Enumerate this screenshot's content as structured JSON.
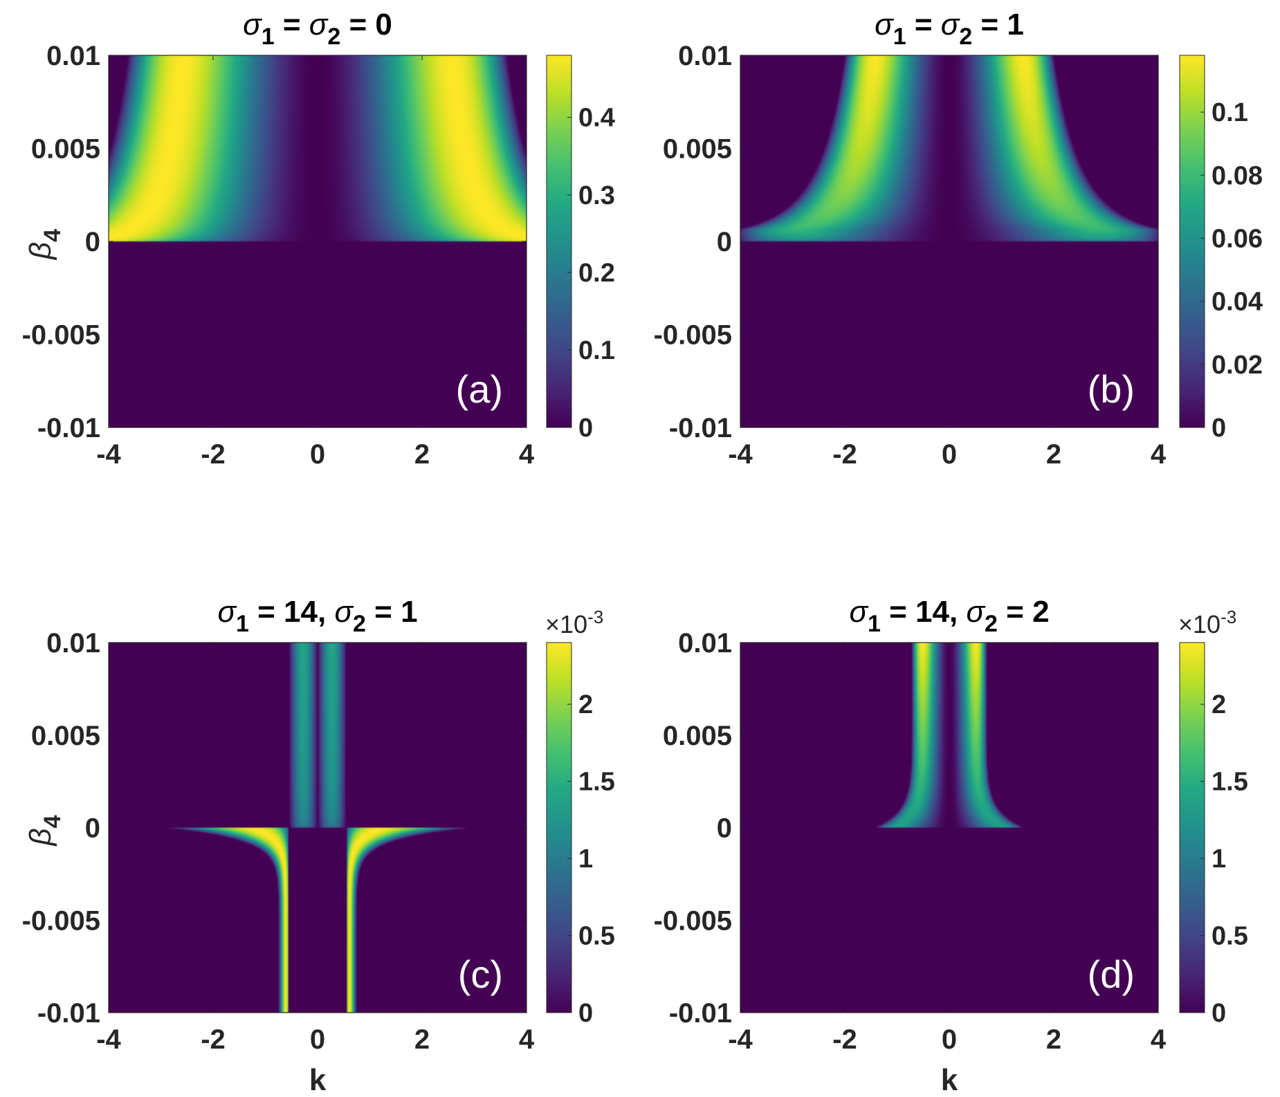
{
  "chart_data": [
    {
      "type": "heatmap",
      "panel_label": "(a)",
      "title_parts": {
        "s1": "σ",
        "sub1": "1",
        "mid": " = ",
        "s2": "σ",
        "sub2": "2",
        "tail": " = 0"
      },
      "xlabel": "",
      "ylabel": "β",
      "ylabel_sub": "4",
      "xlim": [
        -4,
        4
      ],
      "ylim": [
        -0.01,
        0.01
      ],
      "x_ticks": [
        "-4",
        "-2",
        "0",
        "2",
        "4"
      ],
      "y_ticks": [
        "-0.01",
        "-0.005",
        "0",
        "0.005",
        "0.01"
      ],
      "colorbar": {
        "range": [
          0,
          0.48
        ],
        "ticks": [
          "0",
          "0.1",
          "0.2",
          "0.3",
          "0.4"
        ],
        "tick_values": [
          0,
          0.1,
          0.2,
          0.3,
          0.4
        ],
        "exponent_label": ""
      },
      "features": {
        "region": "beta4 > 0",
        "peak_value": 0.48,
        "peak_k": [
          -2.8,
          2.8
        ],
        "band_edge_k_at_beta_max": 3.0,
        "zero_at_k": 0
      }
    },
    {
      "type": "heatmap",
      "panel_label": "(b)",
      "title_parts": {
        "s1": "σ",
        "sub1": "1",
        "mid": " = ",
        "s2": "σ",
        "sub2": "2",
        "tail": " = 1"
      },
      "xlabel": "",
      "ylabel": "",
      "ylabel_sub": "",
      "xlim": [
        -4,
        4
      ],
      "ylim": [
        -0.01,
        0.01
      ],
      "x_ticks": [
        "-4",
        "-2",
        "0",
        "2",
        "4"
      ],
      "y_ticks": [
        "-0.01",
        "-0.005",
        "0",
        "0.005",
        "0.01"
      ],
      "colorbar": {
        "range": [
          0,
          0.118
        ],
        "ticks": [
          "0",
          "0.02",
          "0.04",
          "0.06",
          "0.08",
          "0.1"
        ],
        "tick_values": [
          0,
          0.02,
          0.04,
          0.06,
          0.08,
          0.1
        ],
        "exponent_label": ""
      },
      "features": {
        "region": "beta4 > 0",
        "peak_value": 0.118,
        "peak_k": [
          -1.6,
          1.6
        ],
        "band_edge_k_at_beta_max": 2.0,
        "zero_at_k": 0
      }
    },
    {
      "type": "heatmap",
      "panel_label": "(c)",
      "title_parts": {
        "s1": "σ",
        "sub1": "1",
        "mid": " = 14, ",
        "s2": "σ",
        "sub2": "2",
        "tail": " = 1"
      },
      "xlabel": "k",
      "ylabel": "β",
      "ylabel_sub": "4",
      "xlim": [
        -4,
        4
      ],
      "ylim": [
        -0.01,
        0.01
      ],
      "x_ticks": [
        "-4",
        "-2",
        "0",
        "2",
        "4"
      ],
      "y_ticks": [
        "-0.01",
        "-0.005",
        "0",
        "0.005",
        "0.01"
      ],
      "colorbar": {
        "range": [
          0,
          2.4
        ],
        "ticks": [
          "0",
          "0.5",
          "1",
          "1.5",
          "2"
        ],
        "tick_values": [
          0,
          0.5,
          1,
          1.5,
          2
        ],
        "exponent_label": "×10",
        "exponent_power": "-3"
      },
      "features": {
        "upper_band_k": [
          -0.55,
          0.55
        ],
        "lower_band_edge_k_at_beta_min": 0.75,
        "peak_value": 2.4
      }
    },
    {
      "type": "heatmap",
      "panel_label": "(d)",
      "title_parts": {
        "s1": "σ",
        "sub1": "1",
        "mid": " = 14, ",
        "s2": "σ",
        "sub2": "2",
        "tail": " = 2"
      },
      "xlabel": "k",
      "ylabel": "",
      "ylabel_sub": "",
      "xlim": [
        -4,
        4
      ],
      "ylim": [
        -0.01,
        0.01
      ],
      "x_ticks": [
        "-4",
        "-2",
        "0",
        "2",
        "4"
      ],
      "y_ticks": [
        "-0.01",
        "-0.005",
        "0",
        "0.005",
        "0.01"
      ],
      "colorbar": {
        "range": [
          0,
          2.4
        ],
        "ticks": [
          "0",
          "0.5",
          "1",
          "1.5",
          "2"
        ],
        "tick_values": [
          0,
          0.5,
          1,
          1.5,
          2
        ],
        "exponent_label": "×10",
        "exponent_power": "-3"
      },
      "features": {
        "region": "beta4 > 0",
        "band_edge_k_at_beta_max": 0.7,
        "peak_value": 2.4
      }
    }
  ],
  "colormap": {
    "name": "viridis",
    "stops": [
      "#440154",
      "#482475",
      "#414487",
      "#355f8d",
      "#2a788e",
      "#21918c",
      "#22a884",
      "#44bf70",
      "#7ad151",
      "#bddf26",
      "#fde725"
    ]
  }
}
